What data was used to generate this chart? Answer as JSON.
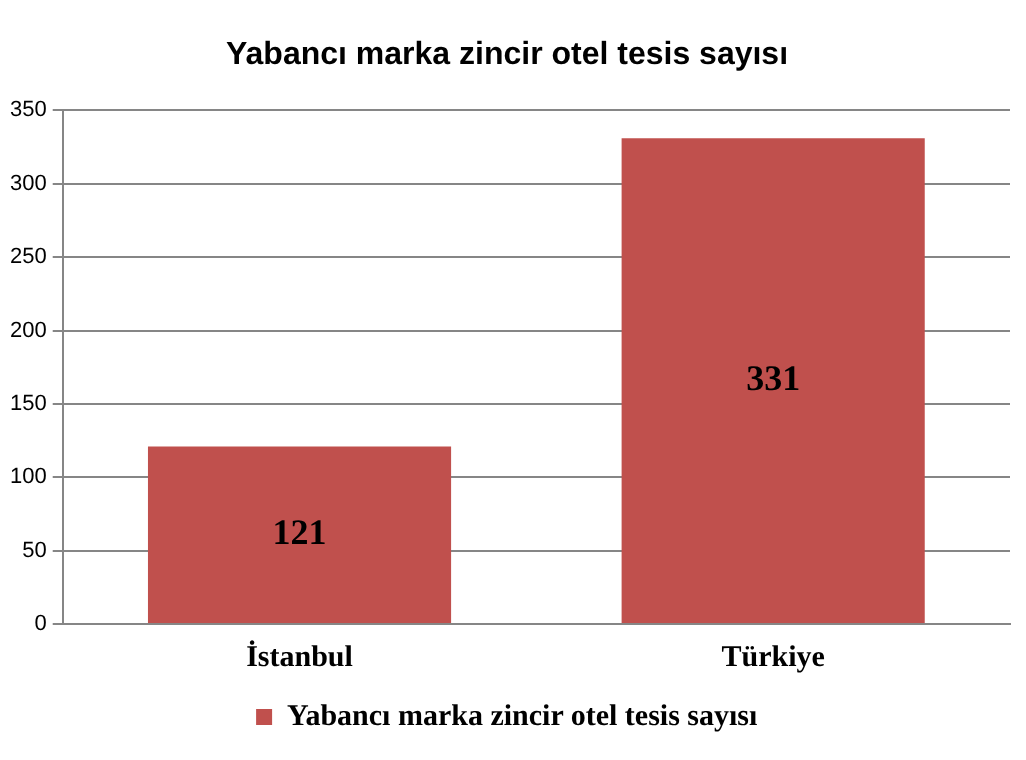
{
  "chart_data": {
    "type": "bar",
    "title": "Yabancı marka zincir otel tesis sayısı",
    "categories": [
      "İstanbul",
      "Türkiye"
    ],
    "series": [
      {
        "name": "Yabancı marka zincir otel tesis sayısı",
        "color": "#c0504d",
        "values": [
          121,
          331
        ]
      }
    ],
    "ylim": [
      0,
      350
    ],
    "yticks": [
      0,
      50,
      100,
      150,
      200,
      250,
      300,
      350
    ],
    "grid": "y",
    "legend": "bottom",
    "data_labels": true
  }
}
